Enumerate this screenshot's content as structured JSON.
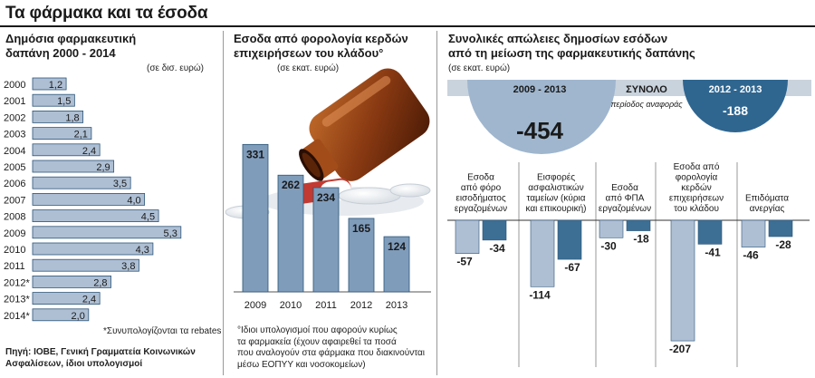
{
  "title": "Τα φάρμακα και τα έσοδα",
  "colors": {
    "bar_light": "#aebfd4",
    "bar_mid": "#7f9cbb",
    "bar_dark": "#3d6f95",
    "stroke": "#2d5578",
    "circle_light": "#9fb6ce",
    "circle_dark": "#2f6690"
  },
  "panel1": {
    "title_line1": "Δημόσια φαρμακευτική",
    "title_line2": "δαπάνη 2000 - 2014",
    "unit": "(σε δισ. ευρώ)",
    "footnote": "*Συνυπολογίζονται τα rebates",
    "source_line1": "Πηγή: ΙΟΒΕ, Γενική Γραμματεία Κοινωνικών",
    "source_line2": "Ασφαλίσεων, ίδιοι υπολογισμοί"
  },
  "panel2": {
    "title_line1": "Εσοδα από φορολογία κερδών",
    "title_line2": "επιχειρήσεων του κλάδου°",
    "unit": "(σε εκατ. ευρώ)",
    "note_line1": "°Ιδιοι υπολογισμοί που αφορούν κυρίως",
    "note_line2": "τα φαρμακεία (έχουν αφαιρεθεί τα ποσά",
    "note_line3": "που αναλογούν στα φάρμακα που διακινούνται",
    "note_line4": "μέσω ΕΟΠΥΥ και νοσοκομείων)"
  },
  "panel3": {
    "title_line1": "Συνολικές απώλειες δημοσίων εσόδων",
    "title_line2": "από τη μείωση της φαρμακευτικής δαπάνης",
    "unit": "(σε εκατ. ευρώ)",
    "total_label": "ΣΥΝΟΛΟ",
    "period_label": "περίοδος αναφοράς",
    "big_period": "2009 - 2013",
    "big_value": "-454",
    "small_period": "2012 - 2013",
    "small_value": "-188"
  },
  "chart_data": [
    {
      "type": "bar",
      "orientation": "horizontal",
      "title": "Δημόσια φαρμακευτική δαπάνη 2000 - 2014",
      "unit": "δισ. ευρώ",
      "categories": [
        "2000",
        "2001",
        "2002",
        "2003",
        "2004",
        "2005",
        "2006",
        "2007",
        "2008",
        "2009",
        "2010",
        "2011",
        "2012*",
        "2013*",
        "2014*"
      ],
      "values": [
        1.2,
        1.5,
        1.8,
        2.1,
        2.4,
        2.9,
        3.5,
        4.0,
        4.5,
        5.3,
        4.3,
        3.8,
        2.8,
        2.4,
        2.0
      ],
      "labels": [
        "1,2",
        "1,5",
        "1,8",
        "2,1",
        "2,4",
        "2,9",
        "3,5",
        "4,0",
        "4,5",
        "5,3",
        "4,3",
        "3,8",
        "2,8",
        "2,4",
        "2,0"
      ],
      "xlim": [
        0,
        5.5
      ]
    },
    {
      "type": "bar",
      "title": "Εσοδα από φορολογία κερδών επιχειρήσεων του κλάδου",
      "unit": "εκατ. ευρώ",
      "categories": [
        "2009",
        "2010",
        "2011",
        "2012",
        "2013"
      ],
      "values": [
        331,
        262,
        234,
        165,
        124
      ],
      "ylim": [
        0,
        350
      ]
    },
    {
      "type": "bar",
      "title": "Συνολικές απώλειες δημοσίων εσόδων από τη μείωση της φαρμακευτικής δαπάνης",
      "unit": "εκατ. ευρώ",
      "categories": [
        [
          "Εσοδα",
          "από φόρο",
          "εισοδήματος",
          "εργαζομένων"
        ],
        [
          "Εισφορές",
          "ασφαλιστικών",
          "ταμείων (κύρια",
          "και επικουρική)"
        ],
        [
          "Εσοδα",
          "από ΦΠΑ",
          "εργαζομένων"
        ],
        [
          "Εσοδα από",
          "φορολογία",
          "κερδών",
          "επιχειρήσεων",
          "του κλάδου"
        ],
        [
          "Επιδόματα",
          "ανεργίας"
        ]
      ],
      "series": [
        {
          "name": "2009 - 2013",
          "values": [
            -57,
            -114,
            -30,
            -207,
            -46
          ]
        },
        {
          "name": "2012 - 2013",
          "values": [
            -34,
            -67,
            -18,
            -41,
            -28
          ]
        }
      ],
      "ylim": [
        -210,
        0
      ]
    }
  ]
}
